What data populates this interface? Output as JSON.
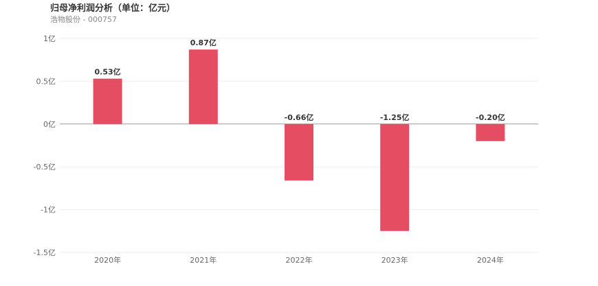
{
  "title": "归母净利润分析（单位：亿元）",
  "subtitle": "浩物股份 - 000757",
  "colors": {
    "bar": "#e54d62",
    "grid": "#eeeeee",
    "zero_axis": "#999999"
  },
  "chart_data": {
    "type": "bar",
    "title": "归母净利润分析（单位：亿元）",
    "subtitle": "浩物股份 - 000757",
    "categories": [
      "2020年",
      "2021年",
      "2022年",
      "2023年",
      "2024年"
    ],
    "values": [
      0.53,
      0.87,
      -0.66,
      -1.25,
      -0.2
    ],
    "data_labels": [
      "0.53亿",
      "0.87亿",
      "-0.66亿",
      "-1.25亿",
      "-0.20亿"
    ],
    "y_ticks": [
      1,
      0.5,
      0,
      -0.5,
      -1,
      -1.5
    ],
    "y_tick_labels": [
      "1亿",
      "0.5亿",
      "0亿",
      "-0.5亿",
      "-1亿",
      "-1.5亿"
    ],
    "ylim": [
      -1.5,
      1
    ],
    "grid": true,
    "legend": "none"
  }
}
